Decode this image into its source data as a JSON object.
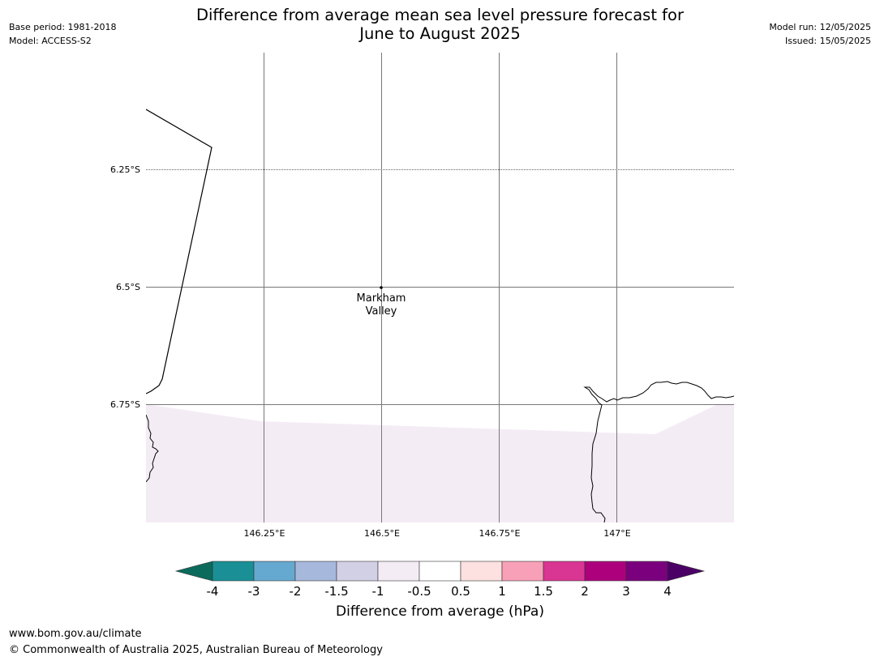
{
  "header": {
    "title_line1": "Difference from average mean sea level pressure forecast for",
    "title_line2": "June to August 2025",
    "base_period": "Base period: 1981-2018",
    "model": "Model: ACCESS-S2",
    "model_run": "Model run: 12/05/2025",
    "issued": "Issued: 15/05/2025"
  },
  "map": {
    "lat_labels": [
      "6.25°S",
      "6.5°S",
      "6.75°S"
    ],
    "lon_labels": [
      "146.25°E",
      "146.5°E",
      "146.75°E",
      "147°E"
    ],
    "place": {
      "name_line1": "Markham",
      "name_line2": "Valley",
      "lon": 146.5,
      "lat": -6.5
    },
    "shaded_region_color": "#f4ecf5",
    "extent": {
      "lon": [
        146.0,
        147.25
      ],
      "lat": [
        -7.0,
        -6.0
      ]
    }
  },
  "colorbar": {
    "labels": [
      "-4",
      "-3",
      "-2",
      "-1.5",
      "-1",
      "-0.5",
      "0.5",
      "1",
      "1.5",
      "2",
      "3",
      "4"
    ],
    "colors": [
      "#1a8f96",
      "#66a9d0",
      "#a6b9dc",
      "#d2d0e5",
      "#f4ecf5",
      "#ffffff",
      "#fde0e0",
      "#f8a0b7",
      "#d93592",
      "#ad007c",
      "#7b007e"
    ],
    "low_extend_color": "#0a6b5c",
    "high_extend_color": "#4b0066",
    "title": "Difference from average (hPa)"
  },
  "footer": {
    "url": "www.bom.gov.au/climate",
    "copyright": "© Commonwealth of Australia 2025, Australian Bureau of Meteorology"
  }
}
